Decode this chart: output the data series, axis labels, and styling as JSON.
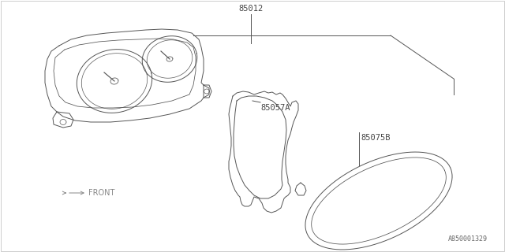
{
  "bg_color": "#ffffff",
  "line_color": "#555555",
  "part_labels": [
    "85012",
    "85057A",
    "85075B"
  ],
  "diagram_id": "A850001329",
  "lw": 0.7
}
